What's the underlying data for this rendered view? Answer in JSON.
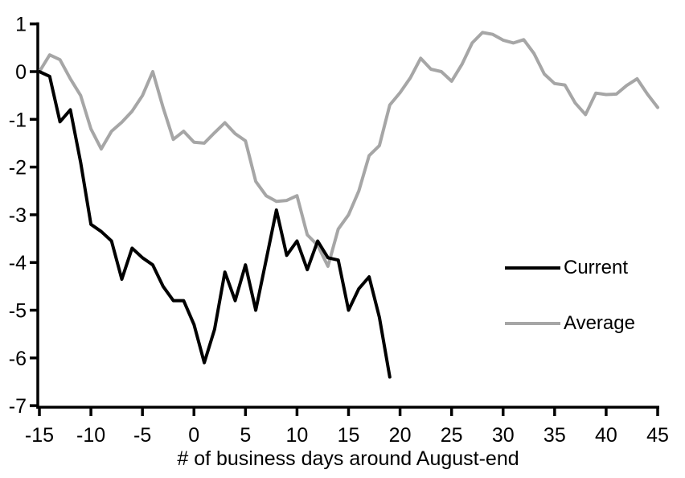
{
  "chart_data": {
    "type": "line",
    "title": "",
    "xlabel": "# of business days around August-end",
    "ylabel": "",
    "grid": false,
    "background": "#ffffff",
    "legend_position": "right-middle",
    "x_axis": {
      "min": -15,
      "max": 45,
      "ticks": [
        -15,
        -10,
        -5,
        0,
        5,
        10,
        15,
        20,
        25,
        30,
        35,
        40,
        45
      ]
    },
    "y_axis": {
      "min": -7,
      "max": 1,
      "ticks": [
        1,
        0,
        -1,
        -2,
        -3,
        -4,
        -5,
        -6,
        -7
      ]
    },
    "x": [
      -15,
      -14,
      -13,
      -12,
      -11,
      -10,
      -9,
      -8,
      -7,
      -6,
      -5,
      -4,
      -3,
      -2,
      -1,
      0,
      1,
      2,
      3,
      4,
      5,
      6,
      7,
      8,
      9,
      10,
      11,
      12,
      13,
      14,
      15,
      16,
      17,
      18,
      19,
      20,
      21,
      22,
      23,
      24,
      25,
      26,
      27,
      28,
      29,
      30,
      31,
      32,
      33,
      34,
      35,
      36,
      37,
      38,
      39,
      40,
      41,
      42,
      43,
      44,
      45
    ],
    "series": [
      {
        "name": "Current",
        "color": "#000000",
        "values": [
          0,
          -0.1,
          -1.05,
          -0.8,
          -1.9,
          -3.2,
          -3.35,
          -3.55,
          -4.35,
          -3.7,
          -3.9,
          -4.05,
          -4.5,
          -4.8,
          -4.8,
          -5.3,
          -6.1,
          -5.4,
          -4.2,
          -4.8,
          -4.05,
          -5.0,
          -3.95,
          -2.9,
          -3.85,
          -3.55,
          -4.15,
          -3.55,
          -3.9,
          -3.95,
          -5.0,
          -4.55,
          -4.3,
          -5.15,
          -6.4,
          null,
          null,
          null,
          null,
          null,
          null,
          null,
          null,
          null,
          null,
          null,
          null,
          null,
          null,
          null,
          null,
          null,
          null,
          null,
          null,
          null,
          null,
          null,
          null,
          null,
          null
        ]
      },
      {
        "name": "Average",
        "color": "#A6A6A6",
        "values": [
          0,
          0.35,
          0.25,
          -0.15,
          -0.5,
          -1.2,
          -1.62,
          -1.25,
          -1.06,
          -0.83,
          -0.5,
          0.0,
          -0.75,
          -1.42,
          -1.25,
          -1.48,
          -1.5,
          -1.28,
          -1.07,
          -1.3,
          -1.45,
          -2.3,
          -2.6,
          -2.72,
          -2.7,
          -2.6,
          -3.42,
          -3.64,
          -4.08,
          -3.3,
          -3.0,
          -2.5,
          -1.76,
          -1.55,
          -0.7,
          -0.44,
          -0.13,
          0.28,
          0.05,
          0.0,
          -0.2,
          0.15,
          0.6,
          0.82,
          0.78,
          0.66,
          0.6,
          0.67,
          0.38,
          -0.05,
          -0.25,
          -0.28,
          -0.66,
          -0.9,
          -0.45,
          -0.48,
          -0.47,
          -0.29,
          -0.15,
          -0.47,
          -0.75
        ]
      }
    ]
  }
}
